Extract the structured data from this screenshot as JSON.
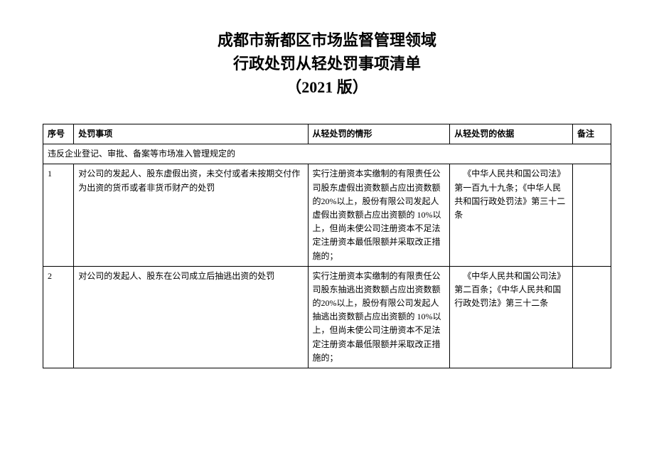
{
  "title": {
    "line1": "成都市新都区市场监督管理领域",
    "line2": "行政处罚从轻处罚事项清单",
    "line3": "（2021 版）"
  },
  "headers": {
    "seq": "序号",
    "item": "处罚事项",
    "situation": "从轻处罚的情形",
    "basis": "从轻处罚的依据",
    "remark": "备注"
  },
  "section_title": "违反企业登记、审批、备案等市场准入管理规定的",
  "rows": [
    {
      "seq": "1",
      "item": "对公司的发起人、股东虚假出资，未交付或者未按期交付作为出资的货币或者非货币财产的处罚",
      "situation": "实行注册资本实缴制的有限责任公司股东虚假出资数额占应出资数额的20%以上，股份有限公司发起人虚假出资数额占应出资额的 10%以上，但尚未使公司注册资本不足法定注册资本最低限额并采取改正措施的；",
      "basis": "《中华人民共和国公司法》第一百九十九条；《中华人民共和国行政处罚法》第三十二条",
      "remark": ""
    },
    {
      "seq": "2",
      "item": "对公司的发起人、股东在公司成立后抽逃出资的处罚",
      "situation": "实行注册资本实缴制的有限责任公司股东抽逃出资数额占应出资数额的20%以上，股份有限公司发起人抽逃出资数额占应出资额的 10%以上，但尚未使公司注册资本不足法定注册资本最低限额并采取改正措施的；",
      "basis": "《中华人民共和国公司法》第二百条；《中华人民共和国行政处罚法》第三十二条",
      "remark": ""
    }
  ],
  "style": {
    "background_color": "#ffffff",
    "text_color": "#000000",
    "border_color": "#000000",
    "title_fontsize": 22,
    "body_fontsize": 12,
    "font_family": "SimSun"
  }
}
